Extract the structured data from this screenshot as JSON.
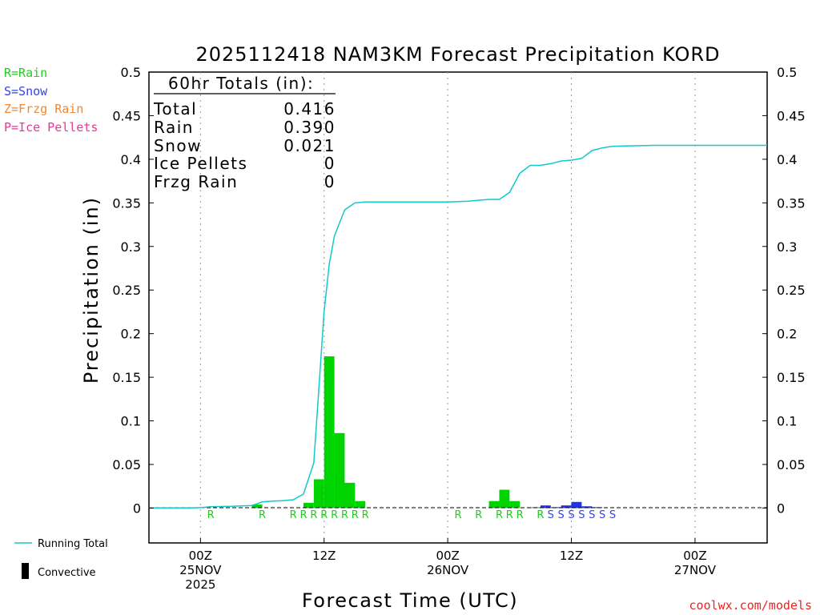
{
  "title": "2025112418 NAM3KM Forecast Precipitation KORD",
  "credit": "coolwx.com/models",
  "legend": {
    "types": [
      {
        "label": "R=Rain",
        "color": "#22cc22"
      },
      {
        "label": "S=Snow",
        "color": "#3344ee"
      },
      {
        "label": "Z=Frzg Rain",
        "color": "#ee8833"
      },
      {
        "label": "P=Ice Pellets",
        "color": "#ee3399"
      }
    ],
    "running_total": "Running Total",
    "convective": "Convective"
  },
  "totals": {
    "header": "60hr Totals (in):",
    "rows": [
      {
        "label": "Total",
        "value": "0.416"
      },
      {
        "label": "Rain",
        "value": "0.390"
      },
      {
        "label": "Snow",
        "value": "0.021"
      },
      {
        "label": "Ice Pellets",
        "value": "0"
      },
      {
        "label": "Frzg Rain",
        "value": "0"
      }
    ]
  },
  "chart_data": {
    "type": "bar",
    "title": "2025112418 NAM3KM Forecast Precipitation KORD",
    "xlabel": "Forecast Time (UTC)",
    "ylabel": "Precipitation (in)",
    "ylim": [
      -0.04,
      0.5
    ],
    "xlim_hours": [
      -5,
      55
    ],
    "yticks": [
      0,
      0.05,
      0.1,
      0.15,
      0.2,
      0.25,
      0.3,
      0.35,
      0.4,
      0.45,
      0.5
    ],
    "ytick_labels": [
      "0",
      "0.05",
      "0.1",
      "0.15",
      "0.2",
      "0.25",
      "0.3",
      "0.35",
      "0.4",
      "0.45",
      "0.5"
    ],
    "xticks": [
      {
        "hour": 0,
        "lines": [
          "00Z",
          "25NOV",
          "2025"
        ]
      },
      {
        "hour": 12,
        "lines": [
          "12Z"
        ]
      },
      {
        "hour": 24,
        "lines": [
          "00Z",
          "26NOV"
        ]
      },
      {
        "hour": 36,
        "lines": [
          "12Z"
        ]
      },
      {
        "hour": 48,
        "lines": [
          "00Z",
          "27NOV"
        ]
      }
    ],
    "bar_width_hours": 1,
    "bars": [
      {
        "hour": 5.5,
        "value": 0.004,
        "type": "R"
      },
      {
        "hour": 10.5,
        "value": 0.006,
        "type": "R"
      },
      {
        "hour": 11.5,
        "value": 0.033,
        "type": "R"
      },
      {
        "hour": 12.5,
        "value": 0.174,
        "type": "R"
      },
      {
        "hour": 13.5,
        "value": 0.086,
        "type": "R"
      },
      {
        "hour": 14.5,
        "value": 0.029,
        "type": "R"
      },
      {
        "hour": 15.5,
        "value": 0.008,
        "type": "R"
      },
      {
        "hour": 28.5,
        "value": 0.008,
        "type": "R"
      },
      {
        "hour": 29.5,
        "value": 0.021,
        "type": "R"
      },
      {
        "hour": 30.5,
        "value": 0.008,
        "type": "R"
      },
      {
        "hour": 32.5,
        "value": 0.001,
        "type": "R"
      },
      {
        "hour": 33.5,
        "value": 0.003,
        "type": "S"
      },
      {
        "hour": 34.5,
        "value": 0.001,
        "type": "S"
      },
      {
        "hour": 35.5,
        "value": 0.003,
        "type": "S"
      },
      {
        "hour": 36.5,
        "value": 0.007,
        "type": "S"
      },
      {
        "hour": 37.5,
        "value": 0.002,
        "type": "S"
      },
      {
        "hour": 38.5,
        "value": 0.001,
        "type": "S"
      }
    ],
    "type_markers": [
      {
        "hour": 1,
        "type": "R"
      },
      {
        "hour": 6,
        "type": "R"
      },
      {
        "hour": 9,
        "type": "R"
      },
      {
        "hour": 10,
        "type": "R"
      },
      {
        "hour": 11,
        "type": "R"
      },
      {
        "hour": 12,
        "type": "R"
      },
      {
        "hour": 13,
        "type": "R"
      },
      {
        "hour": 14,
        "type": "R"
      },
      {
        "hour": 15,
        "type": "R"
      },
      {
        "hour": 16,
        "type": "R"
      },
      {
        "hour": 25,
        "type": "R"
      },
      {
        "hour": 27,
        "type": "R"
      },
      {
        "hour": 29,
        "type": "R"
      },
      {
        "hour": 30,
        "type": "R"
      },
      {
        "hour": 31,
        "type": "R"
      },
      {
        "hour": 33,
        "type": "R"
      },
      {
        "hour": 34,
        "type": "S"
      },
      {
        "hour": 35,
        "type": "S"
      },
      {
        "hour": 36,
        "type": "S"
      },
      {
        "hour": 37,
        "type": "S"
      },
      {
        "hour": 38,
        "type": "S"
      },
      {
        "hour": 39,
        "type": "S"
      },
      {
        "hour": 40,
        "type": "S"
      }
    ],
    "running_total": {
      "hours": [
        -5,
        -1,
        0,
        1,
        3,
        5,
        6,
        7,
        8,
        9,
        10,
        11,
        12,
        12.5,
        13,
        14,
        15,
        16,
        20,
        24,
        26,
        27,
        28,
        29,
        30,
        31,
        32,
        33,
        34,
        35,
        36,
        37,
        38,
        39,
        40,
        44,
        48,
        52,
        55
      ],
      "values": [
        0,
        0,
        0.0005,
        0.0015,
        0.002,
        0.003,
        0.007,
        0.008,
        0.0085,
        0.0095,
        0.016,
        0.052,
        0.225,
        0.28,
        0.312,
        0.342,
        0.35,
        0.351,
        0.351,
        0.351,
        0.352,
        0.353,
        0.354,
        0.354,
        0.362,
        0.384,
        0.393,
        0.393,
        0.395,
        0.398,
        0.399,
        0.401,
        0.41,
        0.413,
        0.415,
        0.416,
        0.416,
        0.416,
        0.416
      ]
    }
  }
}
